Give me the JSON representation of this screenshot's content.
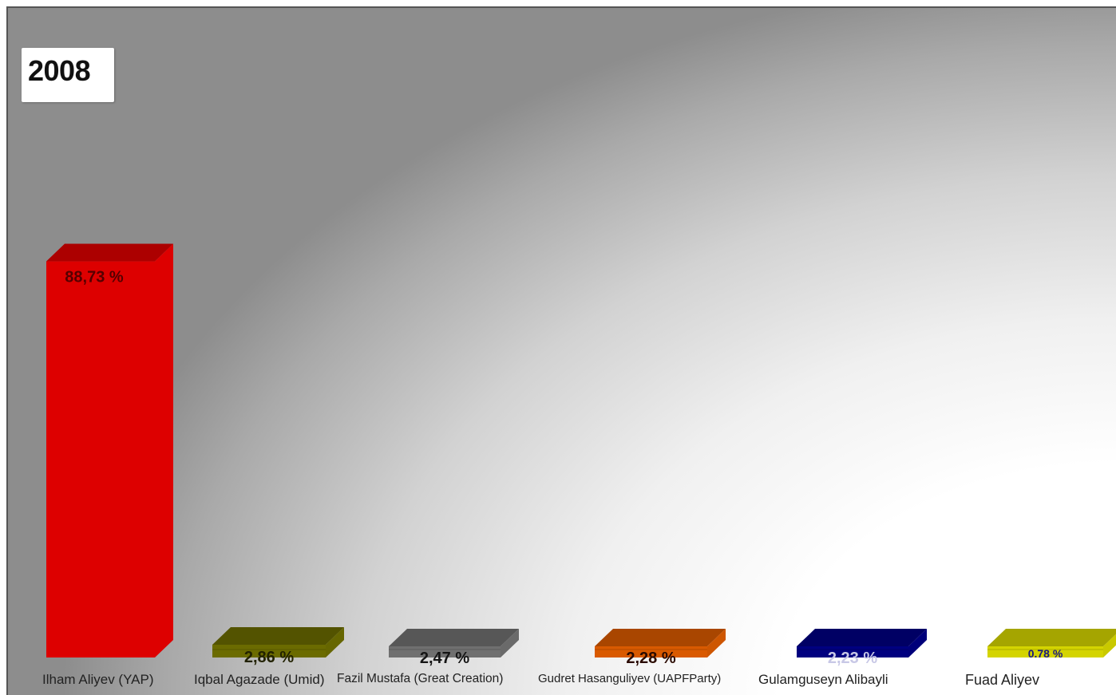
{
  "chart_data": {
    "type": "bar",
    "title": "2008",
    "categories": [
      "Ilham Aliyev (YAP)",
      "Iqbal Agazade (Umid)",
      "Fazil Mustafa (Great Creation)",
      "Gudret Hasanguliyev (UAPFParty)",
      "Gulamguseyn Alibayli",
      "Fuad Aliyev"
    ],
    "values": [
      88.73,
      2.86,
      2.47,
      2.28,
      2.23,
      0.78
    ],
    "value_labels": [
      "88,73  %",
      "2,86  %",
      "2,47  %",
      "2,28  %",
      "2,23  %",
      "0.78 %"
    ],
    "colors": [
      "#dd0000",
      "#6b6b00",
      "#707070",
      "#d95a00",
      "#000080",
      "#d4d400"
    ],
    "label_colors": [
      "#550000",
      "#222200",
      "#151515",
      "#2a0a00",
      "#c8c8e6",
      "#1a1a80"
    ],
    "xlabel": "",
    "ylabel": "",
    "grid": false,
    "legend": "none"
  }
}
